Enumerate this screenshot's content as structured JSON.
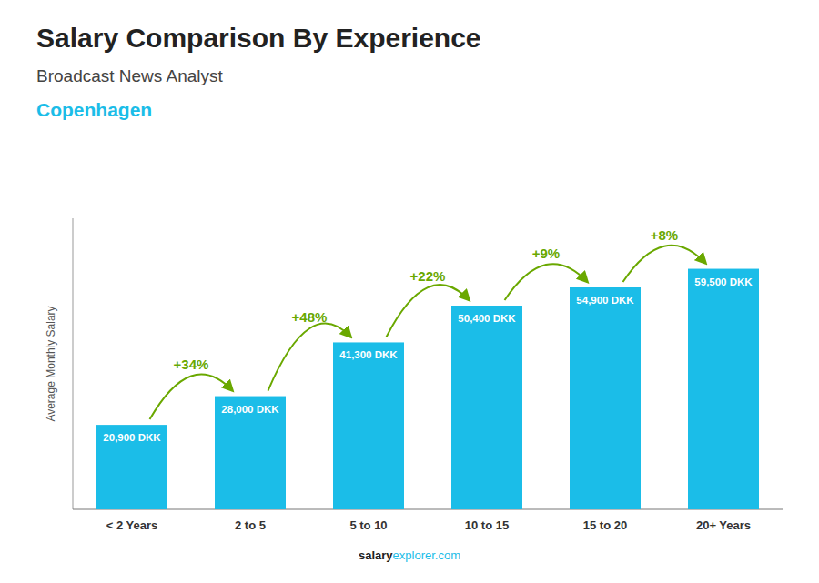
{
  "chart_data": {
    "type": "bar",
    "title": "Salary Comparison By Experience",
    "subtitle": "Broadcast News Analyst",
    "annotations": [
      {
        "text": "Copenhagen",
        "color": "#1bbde8"
      },
      {
        "text": "salary"
      },
      {
        "text": "explorer.com",
        "color": "#1bbde8"
      }
    ],
    "y_label": "Average Monthly Salary",
    "categories": [
      "< 2 Years",
      "2 to 5",
      "5 to 10",
      "10 to 15",
      "15 to 20",
      "20+ Years"
    ],
    "values": [
      20900,
      28000,
      41300,
      50400,
      54900,
      59500
    ],
    "value_labels": [
      "20,900 DKK",
      "28,000 DKK",
      "41,300 DKK",
      "50,400 DKK",
      "54,900 DKK",
      "59,500 DKK"
    ],
    "change_labels": [
      "+34%",
      "+48%",
      "+22%",
      "+9%",
      "+8%"
    ],
    "change_color": "#6aa800",
    "color": "#1bbde8",
    "ylim": [
      0,
      72000
    ],
    "yticks": [],
    "grid": false,
    "data_labels": true,
    "tick_labels": "x"
  }
}
